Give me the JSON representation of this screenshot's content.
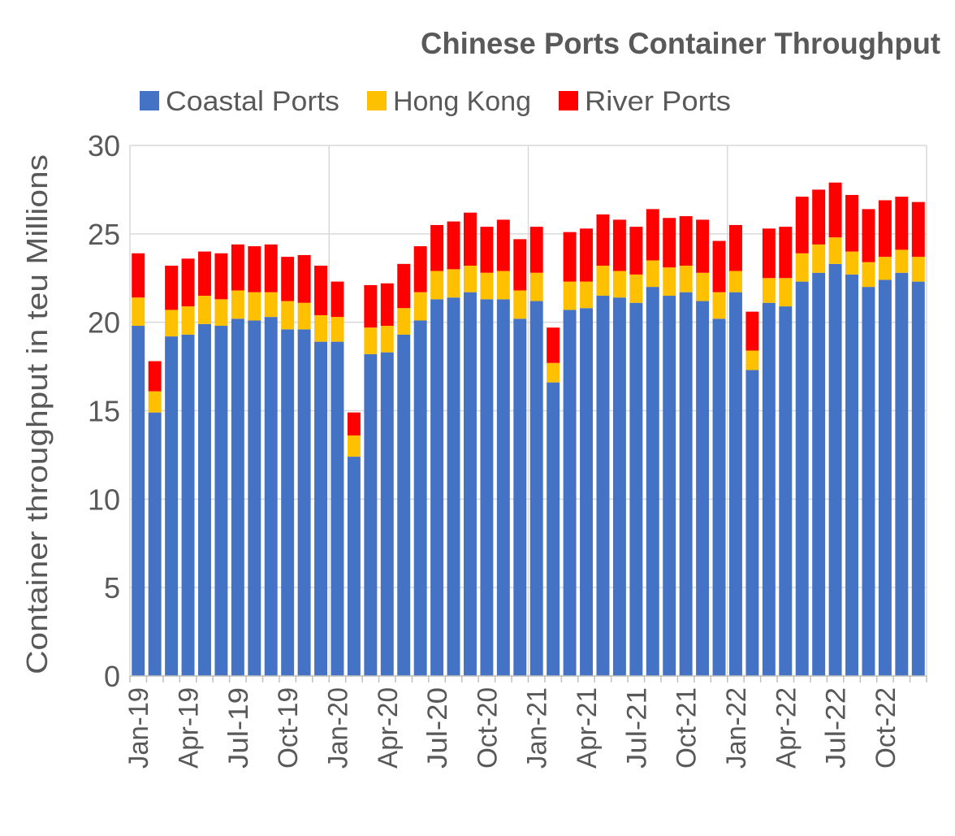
{
  "chart_data": {
    "type": "bar",
    "stacked": true,
    "title": "Chinese Ports Container Throughput",
    "xlabel": "",
    "ylabel": "Container throughput in teu Millions",
    "ylim": [
      0,
      30
    ],
    "y_ticks": [
      "0",
      "5",
      "10",
      "15",
      "20",
      "25",
      "30"
    ],
    "x_range": [
      "Jan-19",
      "Dec-22"
    ],
    "x_tick_labels": [
      "Jan-19",
      "Apr-19",
      "Jul-19",
      "Oct-19",
      "Jan-20",
      "Apr-20",
      "Jul-20",
      "Oct-20",
      "Jan-21",
      "Apr-21",
      "Jul-21",
      "Oct-21",
      "Jan-22",
      "Apr-22",
      "Jul-22",
      "Oct-22"
    ],
    "grid": true,
    "legend": "top",
    "series": [
      {
        "name": "Coastal Ports",
        "color": "#4472C4",
        "values": [
          19.8,
          14.9,
          19.2,
          19.3,
          19.9,
          19.8,
          20.2,
          20.1,
          20.3,
          19.6,
          19.6,
          18.9,
          18.9,
          12.4,
          18.2,
          18.3,
          19.3,
          20.1,
          21.3,
          21.4,
          21.7,
          21.3,
          21.3,
          20.2,
          21.2,
          16.6,
          20.7,
          20.8,
          21.5,
          21.4,
          21.1,
          22.0,
          21.5,
          21.7,
          21.2,
          20.2,
          21.7,
          17.3,
          21.1,
          20.9,
          22.3,
          22.8,
          23.3,
          22.7,
          22.0,
          22.4,
          22.8,
          22.3
        ]
      },
      {
        "name": "Hong Kong",
        "color": "#FFC000",
        "values": [
          1.6,
          1.2,
          1.5,
          1.6,
          1.6,
          1.5,
          1.6,
          1.6,
          1.4,
          1.6,
          1.5,
          1.5,
          1.4,
          1.2,
          1.5,
          1.5,
          1.5,
          1.6,
          1.6,
          1.6,
          1.5,
          1.5,
          1.6,
          1.6,
          1.6,
          1.1,
          1.6,
          1.5,
          1.7,
          1.5,
          1.6,
          1.5,
          1.6,
          1.5,
          1.6,
          1.5,
          1.2,
          1.1,
          1.4,
          1.6,
          1.6,
          1.6,
          1.5,
          1.3,
          1.4,
          1.3,
          1.3,
          1.4
        ]
      },
      {
        "name": "River Ports",
        "color": "#FF0000",
        "values": [
          2.5,
          1.7,
          2.5,
          2.7,
          2.5,
          2.6,
          2.6,
          2.6,
          2.7,
          2.5,
          2.7,
          2.8,
          2.0,
          1.3,
          2.4,
          2.4,
          2.5,
          2.6,
          2.6,
          2.7,
          3.0,
          2.6,
          2.9,
          2.9,
          2.6,
          2.0,
          2.8,
          3.0,
          2.9,
          2.9,
          2.7,
          2.9,
          2.8,
          2.8,
          3.0,
          2.9,
          2.6,
          2.2,
          2.8,
          2.9,
          3.2,
          3.1,
          3.1,
          3.2,
          3.0,
          3.2,
          3.0,
          3.1
        ]
      }
    ]
  }
}
